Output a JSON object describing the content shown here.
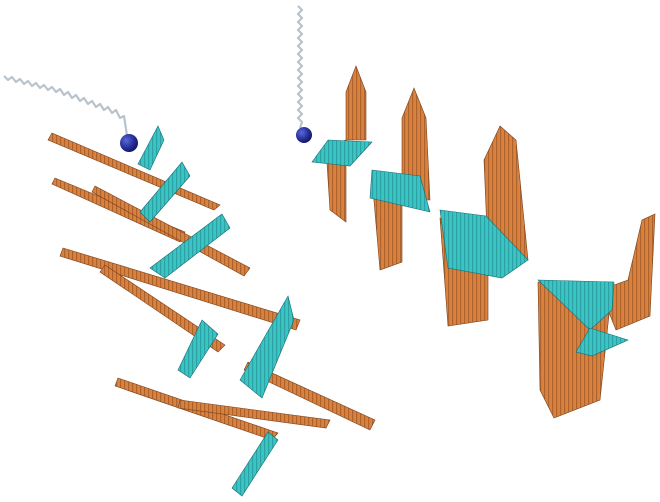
{
  "scene": {
    "background": "#ffffff",
    "colors": {
      "electric_field": "#d9813f",
      "electric_field_dark": "#8a4a1e",
      "magnetic_field": "#3bc4c4",
      "magnetic_field_dark": "#1e7f86",
      "charge": "#26309a",
      "spring": "#b9c3cc"
    },
    "objects": [
      {
        "name": "oscillating-charge-left",
        "icon": "charge-sphere"
      },
      {
        "name": "oscillating-charge-right",
        "icon": "charge-sphere"
      },
      {
        "name": "spring-left",
        "icon": "spring-coil"
      },
      {
        "name": "spring-right",
        "icon": "spring-coil"
      },
      {
        "name": "wave-left",
        "fields": [
          "electric-field-arrows",
          "magnetic-field-arrows"
        ]
      },
      {
        "name": "wave-right",
        "fields": [
          "electric-field-arrows",
          "magnetic-field-arrows"
        ]
      }
    ]
  }
}
